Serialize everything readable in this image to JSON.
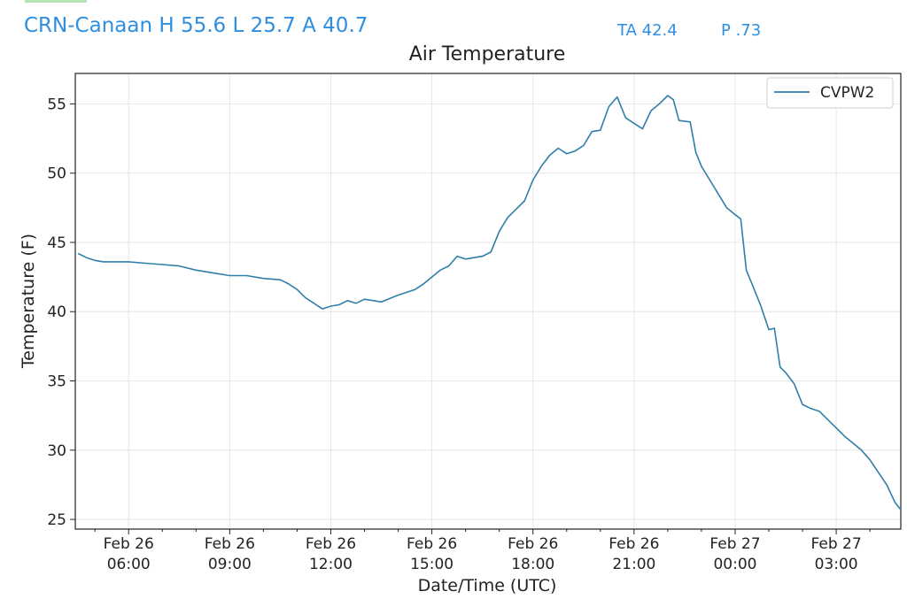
{
  "header": {
    "station_summary": "CRN-Canaan H 55.6 L 25.7 A 40.7",
    "ta": "TA 42.4",
    "p": "P .73"
  },
  "colors": {
    "header_text": "#2e8fe0",
    "series_line": "#2f7fa9",
    "grid": "#e6e6e6"
  },
  "chart_data": {
    "type": "line",
    "title": "Air Temperature",
    "xlabel": "Date/Time (UTC)",
    "ylabel": "Temperature (F)",
    "x_unit": "hours UTC from 2024-02-26 00:00",
    "xlim": [
      "2024-02-26 04:25",
      "2024-02-27 04:55"
    ],
    "ylim": [
      24.3,
      57.2
    ],
    "yticks": [
      25,
      30,
      35,
      40,
      45,
      50,
      55
    ],
    "xticks": [
      {
        "x": "2024-02-26 06:00",
        "line1": "Feb 26",
        "line2": "06:00"
      },
      {
        "x": "2024-02-26 09:00",
        "line1": "Feb 26",
        "line2": "09:00"
      },
      {
        "x": "2024-02-26 12:00",
        "line1": "Feb 26",
        "line2": "12:00"
      },
      {
        "x": "2024-02-26 15:00",
        "line1": "Feb 26",
        "line2": "15:00"
      },
      {
        "x": "2024-02-26 18:00",
        "line1": "Feb 26",
        "line2": "18:00"
      },
      {
        "x": "2024-02-26 21:00",
        "line1": "Feb 26",
        "line2": "21:00"
      },
      {
        "x": "2024-02-27 00:00",
        "line1": "Feb 27",
        "line2": "00:00"
      },
      {
        "x": "2024-02-27 03:00",
        "line1": "Feb 27",
        "line2": "03:00"
      }
    ],
    "grid": true,
    "legend_position": "top-right",
    "series": [
      {
        "name": "CVPW2",
        "points": [
          [
            "2024-02-26 04:30",
            44.2
          ],
          [
            "2024-02-26 04:45",
            43.9
          ],
          [
            "2024-02-26 05:00",
            43.7
          ],
          [
            "2024-02-26 05:15",
            43.6
          ],
          [
            "2024-02-26 05:30",
            43.6
          ],
          [
            "2024-02-26 06:00",
            43.6
          ],
          [
            "2024-02-26 06:30",
            43.5
          ],
          [
            "2024-02-26 07:00",
            43.4
          ],
          [
            "2024-02-26 07:30",
            43.3
          ],
          [
            "2024-02-26 08:00",
            43.0
          ],
          [
            "2024-02-26 08:30",
            42.8
          ],
          [
            "2024-02-26 09:00",
            42.6
          ],
          [
            "2024-02-26 09:30",
            42.6
          ],
          [
            "2024-02-26 10:00",
            42.4
          ],
          [
            "2024-02-26 10:30",
            42.3
          ],
          [
            "2024-02-26 10:45",
            42.0
          ],
          [
            "2024-02-26 11:00",
            41.6
          ],
          [
            "2024-02-26 11:15",
            41.0
          ],
          [
            "2024-02-26 11:30",
            40.6
          ],
          [
            "2024-02-26 11:45",
            40.2
          ],
          [
            "2024-02-26 12:00",
            40.4
          ],
          [
            "2024-02-26 12:15",
            40.5
          ],
          [
            "2024-02-26 12:30",
            40.8
          ],
          [
            "2024-02-26 12:45",
            40.6
          ],
          [
            "2024-02-26 13:00",
            40.9
          ],
          [
            "2024-02-26 13:15",
            40.8
          ],
          [
            "2024-02-26 13:30",
            40.7
          ],
          [
            "2024-02-26 14:00",
            41.2
          ],
          [
            "2024-02-26 14:30",
            41.6
          ],
          [
            "2024-02-26 14:45",
            42.0
          ],
          [
            "2024-02-26 15:00",
            42.5
          ],
          [
            "2024-02-26 15:15",
            43.0
          ],
          [
            "2024-02-26 15:30",
            43.3
          ],
          [
            "2024-02-26 15:45",
            44.0
          ],
          [
            "2024-02-26 16:00",
            43.8
          ],
          [
            "2024-02-26 16:15",
            43.9
          ],
          [
            "2024-02-26 16:30",
            44.0
          ],
          [
            "2024-02-26 16:45",
            44.3
          ],
          [
            "2024-02-26 17:00",
            45.8
          ],
          [
            "2024-02-26 17:15",
            46.8
          ],
          [
            "2024-02-26 17:30",
            47.4
          ],
          [
            "2024-02-26 17:45",
            48.0
          ],
          [
            "2024-02-26 18:00",
            49.5
          ],
          [
            "2024-02-26 18:15",
            50.5
          ],
          [
            "2024-02-26 18:30",
            51.3
          ],
          [
            "2024-02-26 18:45",
            51.8
          ],
          [
            "2024-02-26 19:00",
            51.4
          ],
          [
            "2024-02-26 19:15",
            51.6
          ],
          [
            "2024-02-26 19:30",
            52.0
          ],
          [
            "2024-02-26 19:45",
            53.0
          ],
          [
            "2024-02-26 20:00",
            53.1
          ],
          [
            "2024-02-26 20:15",
            54.8
          ],
          [
            "2024-02-26 20:30",
            55.5
          ],
          [
            "2024-02-26 20:45",
            54.0
          ],
          [
            "2024-02-26 21:00",
            53.6
          ],
          [
            "2024-02-26 21:15",
            53.2
          ],
          [
            "2024-02-26 21:30",
            54.5
          ],
          [
            "2024-02-26 21:45",
            55.0
          ],
          [
            "2024-02-26 22:00",
            55.6
          ],
          [
            "2024-02-26 22:10",
            55.3
          ],
          [
            "2024-02-26 22:20",
            53.8
          ],
          [
            "2024-02-26 22:40",
            53.7
          ],
          [
            "2024-02-26 22:50",
            51.5
          ],
          [
            "2024-02-26 23:00",
            50.5
          ],
          [
            "2024-02-26 23:15",
            49.5
          ],
          [
            "2024-02-26 23:30",
            48.5
          ],
          [
            "2024-02-26 23:45",
            47.5
          ],
          [
            "2024-02-27 00:00",
            47.0
          ],
          [
            "2024-02-27 00:10",
            46.7
          ],
          [
            "2024-02-27 00:20",
            43.0
          ],
          [
            "2024-02-27 00:30",
            42.0
          ],
          [
            "2024-02-27 00:45",
            40.5
          ],
          [
            "2024-02-27 01:00",
            38.7
          ],
          [
            "2024-02-27 01:10",
            38.8
          ],
          [
            "2024-02-27 01:20",
            36.0
          ],
          [
            "2024-02-27 01:30",
            35.6
          ],
          [
            "2024-02-27 01:45",
            34.8
          ],
          [
            "2024-02-27 02:00",
            33.3
          ],
          [
            "2024-02-27 02:15",
            33.0
          ],
          [
            "2024-02-27 02:30",
            32.8
          ],
          [
            "2024-02-27 02:45",
            32.2
          ],
          [
            "2024-02-27 03:00",
            31.6
          ],
          [
            "2024-02-27 03:15",
            31.0
          ],
          [
            "2024-02-27 03:30",
            30.5
          ],
          [
            "2024-02-27 03:45",
            30.0
          ],
          [
            "2024-02-27 04:00",
            29.3
          ],
          [
            "2024-02-27 04:15",
            28.4
          ],
          [
            "2024-02-27 04:30",
            27.5
          ],
          [
            "2024-02-27 04:45",
            26.2
          ],
          [
            "2024-02-27 04:55",
            25.7
          ]
        ]
      }
    ]
  }
}
